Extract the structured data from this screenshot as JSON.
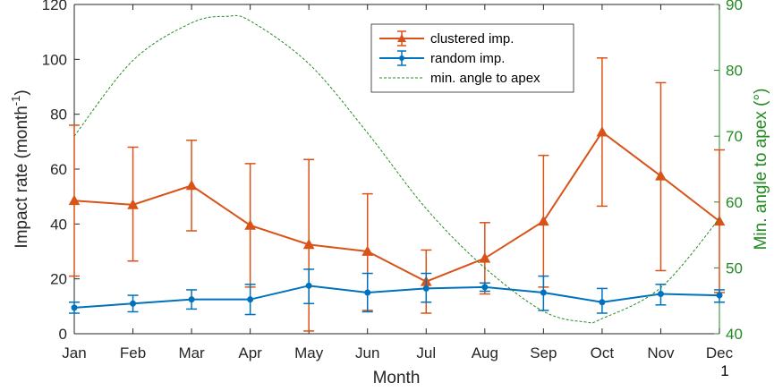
{
  "chart_data": {
    "type": "line",
    "categories": [
      "Jan",
      "Feb",
      "Mar",
      "Apr",
      "May",
      "Jun",
      "Jul",
      "Aug",
      "Sep",
      "Oct",
      "Nov",
      "Dec"
    ],
    "xlabel": "Month",
    "ylabel_left": {
      "prefix": "Impact rate (month",
      "superscript": "-1",
      "suffix": ")"
    },
    "ylabel_right": "Min. angle to apex (°)",
    "ylim_left": [
      0,
      120
    ],
    "yticks_left": [
      0,
      20,
      40,
      60,
      80,
      100,
      120
    ],
    "ylim_right": [
      40,
      90
    ],
    "yticks_right": [
      40,
      50,
      60,
      70,
      80,
      90
    ],
    "grid": false,
    "legend_position": "top-center",
    "page_number": "1",
    "series": [
      {
        "name": "clustered imp.",
        "axis": "left",
        "color": "#D95319",
        "marker": "triangle",
        "values": [
          48.5,
          47,
          54,
          39.5,
          32.5,
          30,
          19,
          27.5,
          41,
          73.5,
          57.5,
          41
        ],
        "err_upper": [
          76,
          68,
          70.5,
          62,
          63.5,
          51,
          30.5,
          40.5,
          65,
          100.5,
          91.5,
          67
        ],
        "err_lower": [
          21,
          26.5,
          37.5,
          17,
          1,
          8.5,
          7.5,
          14.5,
          17,
          46.5,
          23,
          15
        ]
      },
      {
        "name": "random imp.",
        "axis": "left",
        "color": "#0072BD",
        "marker": "dot",
        "values": [
          9.5,
          11,
          12.5,
          12.5,
          17.5,
          15,
          16.5,
          17,
          15,
          11.5,
          14.5,
          14
        ],
        "err_upper": [
          11.5,
          14,
          16,
          18,
          23.5,
          22,
          22,
          18.5,
          21,
          16.5,
          18,
          16
        ],
        "err_lower": [
          7.5,
          8,
          9,
          7,
          11,
          8,
          11.5,
          15.5,
          8.5,
          7.5,
          10.5,
          11.5
        ]
      },
      {
        "name": "min. angle to apex",
        "axis": "right",
        "color": "#228B22",
        "style": "dashed",
        "x": [
          0,
          1,
          2,
          2.6,
          3,
          4,
          5,
          6,
          7,
          8,
          8.7,
          9,
          10,
          11
        ],
        "values": [
          70,
          81.5,
          87.2,
          88.2,
          87.5,
          81,
          70.5,
          59,
          50,
          43.4,
          41.8,
          42.3,
          47,
          57.5
        ]
      }
    ]
  }
}
